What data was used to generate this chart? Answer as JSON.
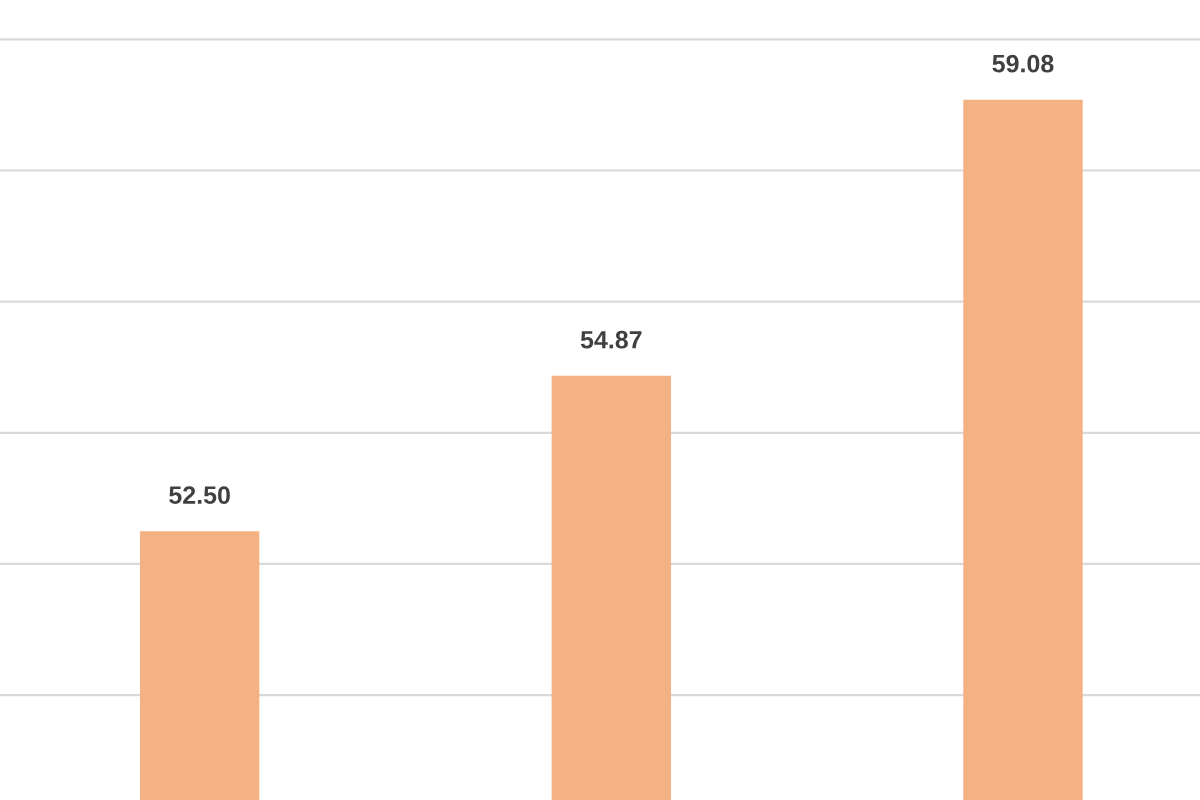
{
  "chart_data": {
    "type": "bar",
    "categories": [
      null,
      null,
      null
    ],
    "values": [
      52.5,
      54.87,
      59.08
    ],
    "color": "#f4b183",
    "value_labels": [
      "52.50",
      "54.87",
      "59.08"
    ],
    "ylim": [
      48.4,
      60.6
    ],
    "yticks": [
      {
        "value": 50,
        "label": null
      },
      {
        "value": 52,
        "label": null
      },
      {
        "value": 54,
        "label": null
      },
      {
        "value": 56,
        "label": null
      },
      {
        "value": 58,
        "label": null
      },
      {
        "value": 60,
        "label": null
      }
    ],
    "grid": "y"
  }
}
